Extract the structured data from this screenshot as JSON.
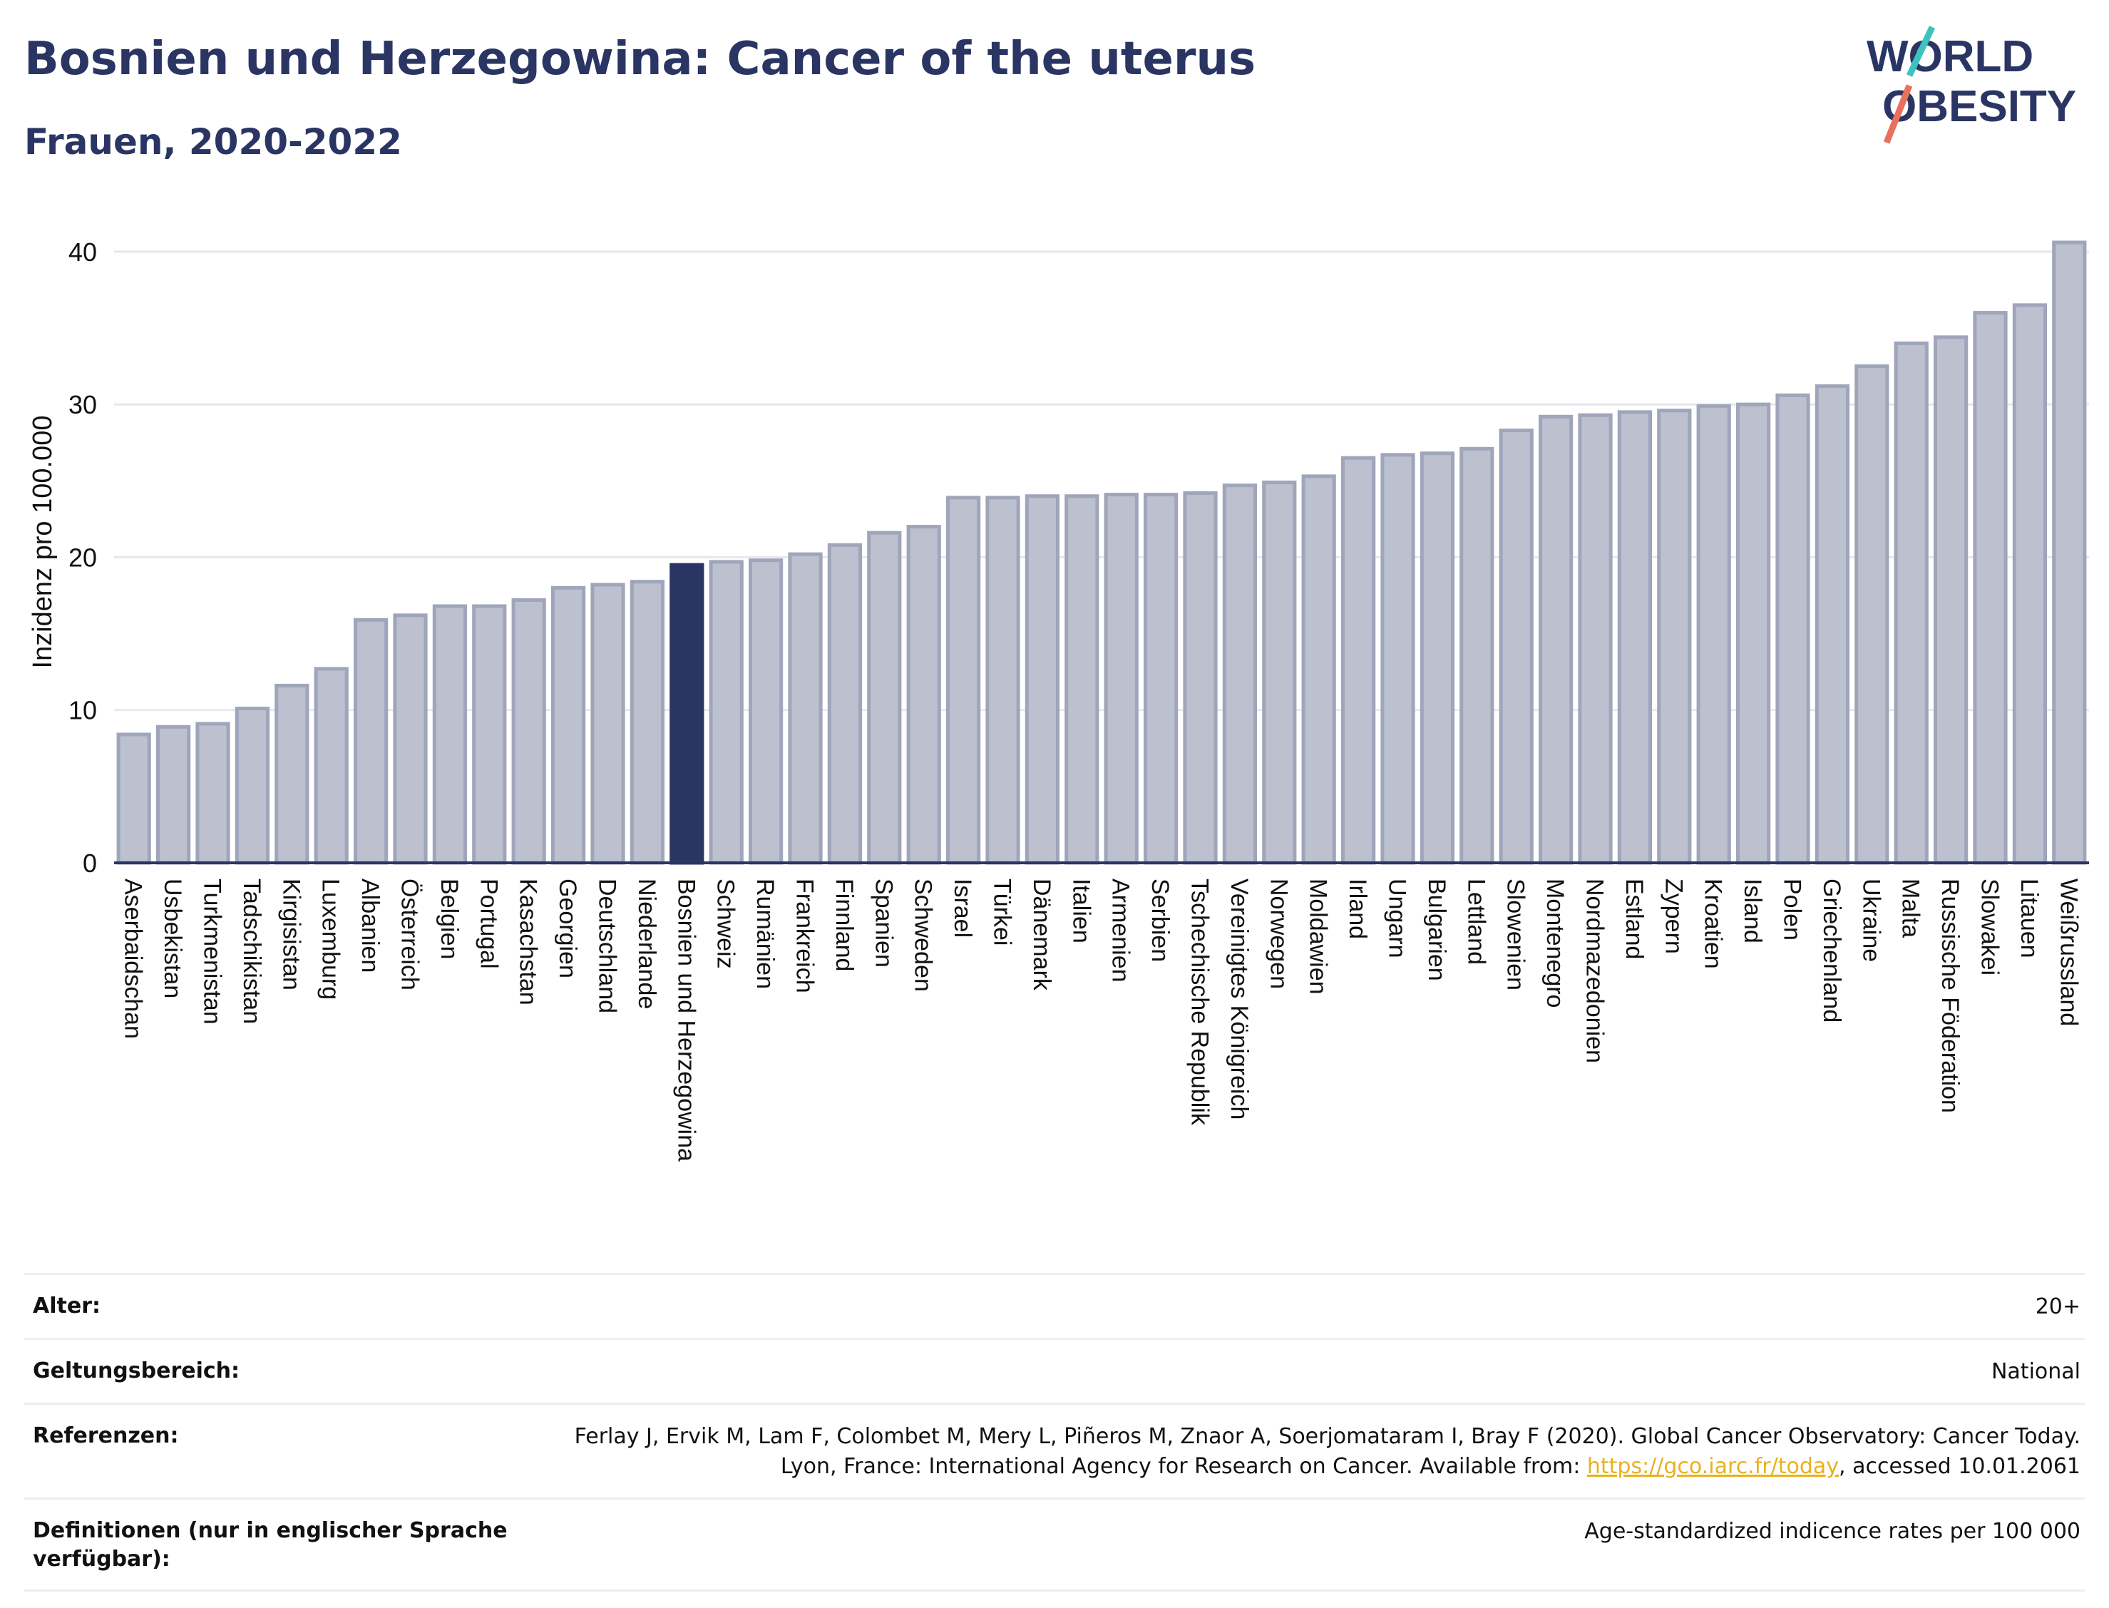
{
  "header": {
    "title": "Bosnien und Herzegowina: Cancer of the uterus",
    "subtitle": "Frauen, 2020-2022",
    "logo_line1": "WORLD",
    "logo_line2": "OBESITY"
  },
  "colors": {
    "bar": "#bcc0cf",
    "bar_edge": "#9fa5ba",
    "highlight": "#2a3563",
    "text": "#2a3563",
    "logo_teal": "#3fc2bd",
    "logo_coral": "#e8705c"
  },
  "chart_data": {
    "type": "bar",
    "ylabel": "Inzidenz pro 100.000",
    "ylim": [
      0,
      42
    ],
    "yticks": [
      0,
      10,
      20,
      30,
      40
    ],
    "grid": true,
    "highlight": "Bosnien und Herzegowina",
    "categories": [
      "Aserbaidschan",
      "Usbekistan",
      "Turkmenistan",
      "Tadschikistan",
      "Kirgisistan",
      "Luxemburg",
      "Albanien",
      "Österreich",
      "Belgien",
      "Portugal",
      "Kasachstan",
      "Georgien",
      "Deutschland",
      "Niederlande",
      "Bosnien und Herzegowina",
      "Schweiz",
      "Rumänien",
      "Frankreich",
      "Finnland",
      "Spanien",
      "Schweden",
      "Israel",
      "Türkei",
      "Dänemark",
      "Italien",
      "Armenien",
      "Serbien",
      "Tschechische Republik",
      "Vereinigtes Königreich",
      "Norwegen",
      "Moldawien",
      "Irland",
      "Ungarn",
      "Bulgarien",
      "Lettland",
      "Slowenien",
      "Montenegro",
      "Nordmazedonien",
      "Estland",
      "Zypern",
      "Kroatien",
      "Island",
      "Polen",
      "Griechenland",
      "Ukraine",
      "Malta",
      "Russische Föderation",
      "Slowakei",
      "Litauen",
      "Weißrussland"
    ],
    "values": [
      8.4,
      8.9,
      9.1,
      10.1,
      11.6,
      12.7,
      15.9,
      16.2,
      16.8,
      16.8,
      17.2,
      18.0,
      18.2,
      18.4,
      19.5,
      19.7,
      19.8,
      20.2,
      20.8,
      21.6,
      22.0,
      23.9,
      23.9,
      24.0,
      24.0,
      24.1,
      24.1,
      24.2,
      24.7,
      24.9,
      25.3,
      26.5,
      26.7,
      26.8,
      27.1,
      28.3,
      29.2,
      29.3,
      29.5,
      29.6,
      29.9,
      30.0,
      30.6,
      31.2,
      32.5,
      34.0,
      34.4,
      36.0,
      36.5,
      40.6
    ]
  },
  "meta": {
    "rows": [
      {
        "label": "Alter:",
        "value": "20+"
      },
      {
        "label": "Geltungsbereich:",
        "value": "National"
      },
      {
        "label": "Referenzen:",
        "value_pre": "Ferlay J, Ervik M, Lam F, Colombet M, Mery L, Piñeros M, Znaor A, Soerjomataram I, Bray F (2020). Global Cancer Observatory: Cancer Today. Lyon, France: International Agency for Research on Cancer. Available from: ",
        "value_link": "https://gco.iarc.fr/today",
        "value_post": ", accessed 10.01.2061"
      },
      {
        "label": "Definitionen (nur in englischer Sprache verfügbar):",
        "value": "Age-standardized indicence rates per 100 000"
      }
    ]
  }
}
